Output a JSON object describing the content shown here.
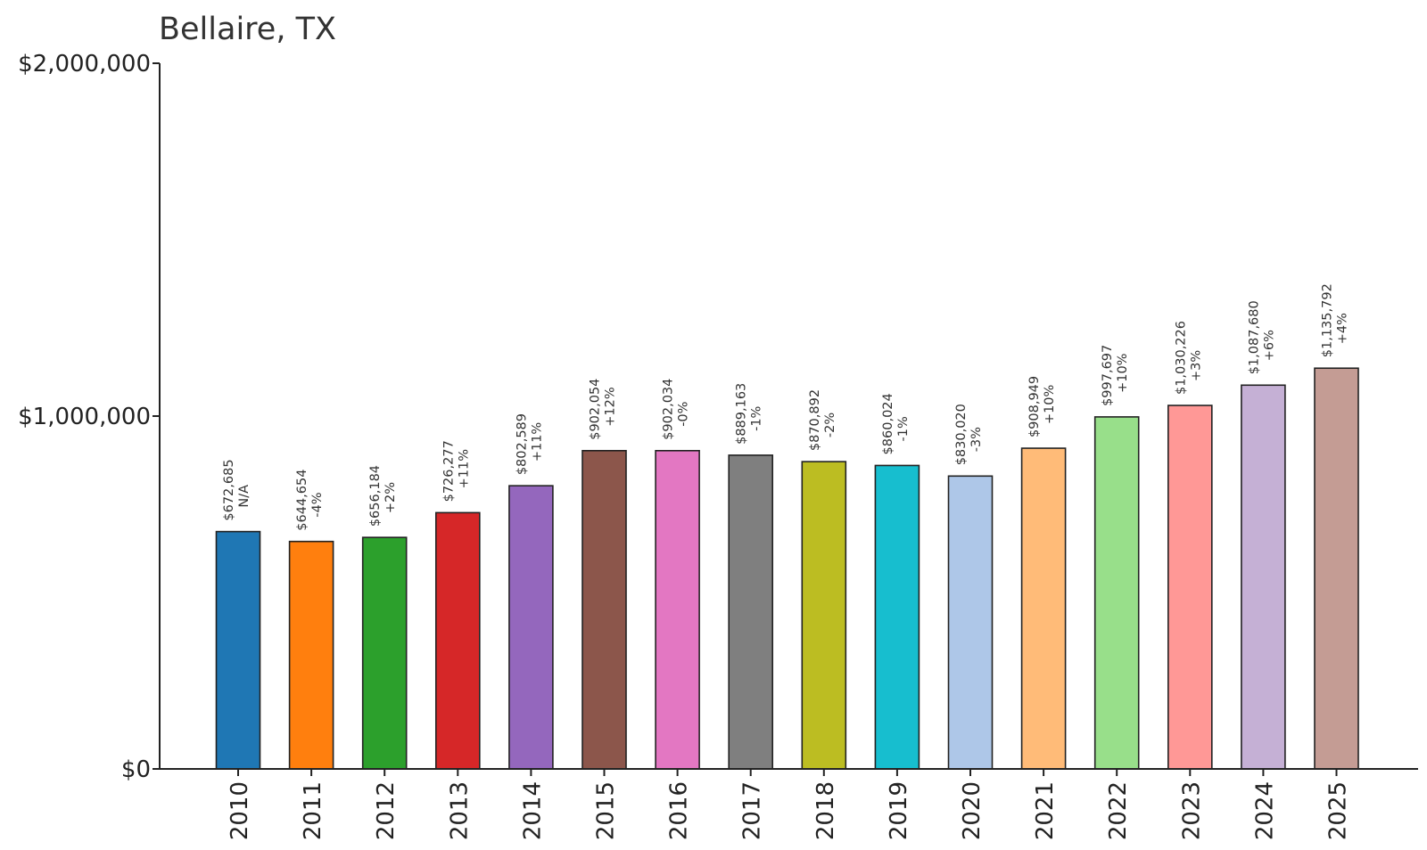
{
  "chart_data": {
    "type": "bar",
    "title": "Bellaire, TX",
    "xlabel": "",
    "ylabel": "",
    "ylim": [
      0,
      2000000
    ],
    "grid": false,
    "legend": "none",
    "y_ticks": [
      {
        "value": 0,
        "label": "$0"
      },
      {
        "value": 1000000,
        "label": "$1,000,000"
      },
      {
        "value": 2000000,
        "label": "$2,000,000"
      }
    ],
    "categories": [
      "2010",
      "2011",
      "2012",
      "2013",
      "2014",
      "2015",
      "2016",
      "2017",
      "2018",
      "2019",
      "2020",
      "2021",
      "2022",
      "2023",
      "2024",
      "2025"
    ],
    "values": [
      672685,
      644654,
      656184,
      726277,
      802589,
      902054,
      902034,
      889163,
      870892,
      860024,
      830020,
      908949,
      997697,
      1030226,
      1087680,
      1135792
    ],
    "value_labels": [
      "$672,685",
      "$644,654",
      "$656,184",
      "$726,277",
      "$802,589",
      "$902,054",
      "$902,034",
      "$889,163",
      "$870,892",
      "$860,024",
      "$830,020",
      "$908,949",
      "$997,697",
      "$1,030,226",
      "$1,087,680",
      "$1,135,792"
    ],
    "change_labels": [
      "N/A",
      "-4%",
      "+2%",
      "+11%",
      "+11%",
      "+12%",
      "-0%",
      "-1%",
      "-2%",
      "-1%",
      "-3%",
      "+10%",
      "+10%",
      "+3%",
      "+6%",
      "+4%"
    ],
    "colors": [
      "#1f77b4",
      "#ff7f0e",
      "#2ca02c",
      "#d62728",
      "#9467bd",
      "#8c564b",
      "#e377c2",
      "#7f7f7f",
      "#bcbd22",
      "#17becf",
      "#aec7e8",
      "#ffbb78",
      "#98df8a",
      "#ff9896",
      "#c5b0d5",
      "#c49c94"
    ]
  }
}
